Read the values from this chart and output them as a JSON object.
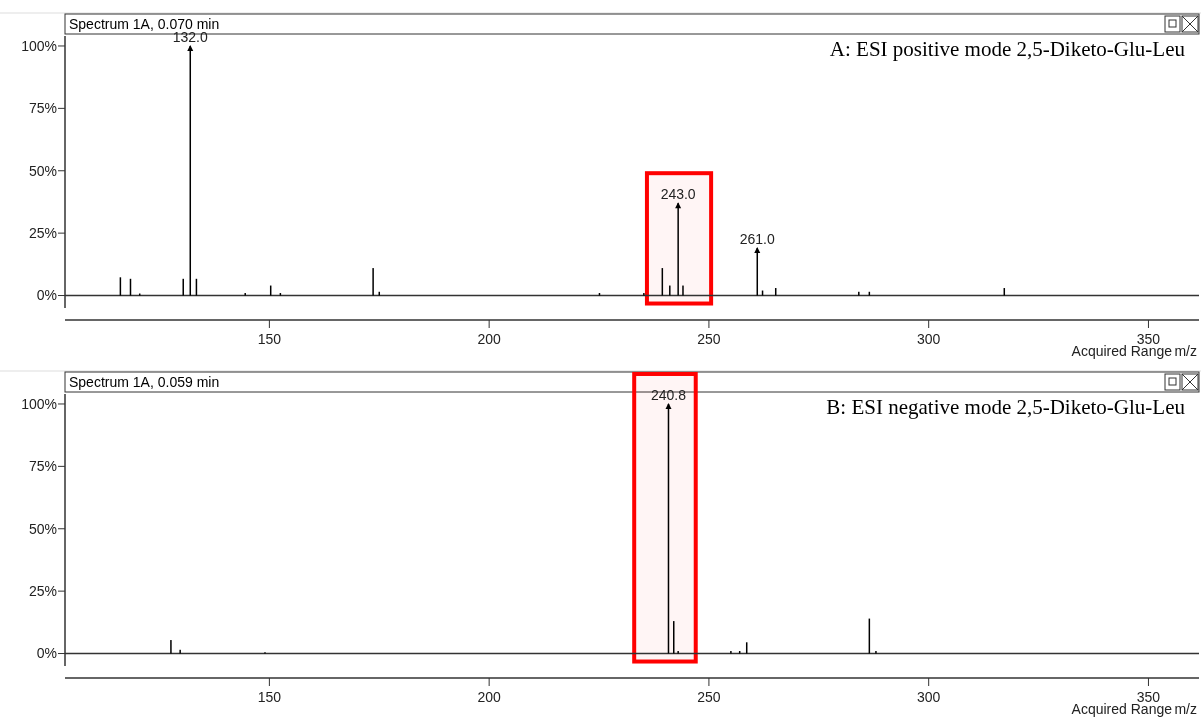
{
  "chart_data": [
    {
      "type": "bar",
      "title": "Spectrum 1A, 0.070 min",
      "subtitle": "A: ESI positive mode 2,5-Diketo-Glu-Leu",
      "xlabel": "m/z",
      "x": [
        116.1,
        118.4,
        120.5,
        130.4,
        132.0,
        133.4,
        144.5,
        150.3,
        152.5,
        173.6,
        175.0,
        225.1,
        235.2,
        239.4,
        241.1,
        243.0,
        244.1,
        261.0,
        262.2,
        265.2,
        284.1,
        286.5,
        317.2
      ],
      "values": [
        7.3,
        6.7,
        0.8,
        6.7,
        100,
        6.7,
        1,
        4,
        1,
        11,
        1.5,
        1,
        1,
        11,
        4,
        37,
        4,
        19,
        2,
        3,
        1.5,
        1.5,
        3
      ],
      "color": "#000000",
      "xlim": [
        103.5,
        361.5
      ],
      "xticks": [
        150,
        200,
        250,
        300,
        350
      ],
      "ylim": [
        -5,
        104
      ],
      "yticks": [
        {
          "value": 0,
          "label": "0%"
        },
        {
          "value": 25,
          "label": "25%"
        },
        {
          "value": 50,
          "label": "50%"
        },
        {
          "value": 75,
          "label": "75%"
        },
        {
          "value": 100,
          "label": "100%"
        }
      ],
      "annotations": [
        {
          "text": "132.0",
          "x": 132.0,
          "y": 100
        },
        {
          "text": "243.0",
          "x": 243.0,
          "y": 37
        },
        {
          "text": "261.0",
          "x": 261.0,
          "y": 19
        },
        "Acquired Range"
      ],
      "bands": [
        {
          "axis": "x",
          "from": 235.9,
          "to": 250.5,
          "color": "#ff0000"
        }
      ]
    },
    {
      "type": "bar",
      "title": "Spectrum 1A, 0.059 min",
      "subtitle": "B: ESI negative mode 2,5-Diketo-Glu-Leu",
      "xlabel": "m/z",
      "x": [
        127.6,
        129.7,
        149.0,
        240.8,
        242.0,
        243.0,
        255.0,
        257.0,
        258.6,
        286.5,
        288.0
      ],
      "values": [
        5.4,
        1.5,
        0.5,
        100,
        13,
        1,
        1,
        1,
        4.5,
        14,
        1
      ],
      "color": "#000000",
      "xlim": [
        103.5,
        361.5
      ],
      "xticks": [
        150,
        200,
        250,
        300,
        350
      ],
      "ylim": [
        -5,
        104
      ],
      "yticks": [
        {
          "value": 0,
          "label": "0%"
        },
        {
          "value": 25,
          "label": "25%"
        },
        {
          "value": 50,
          "label": "50%"
        },
        {
          "value": 75,
          "label": "75%"
        },
        {
          "value": 100,
          "label": "100%"
        }
      ],
      "annotations": [
        {
          "text": "240.8",
          "x": 240.8,
          "y": 100
        },
        "Acquired Range"
      ],
      "bands": [
        {
          "axis": "x",
          "from": 233.0,
          "to": 247.0,
          "color": "#ff0000"
        }
      ]
    }
  ]
}
